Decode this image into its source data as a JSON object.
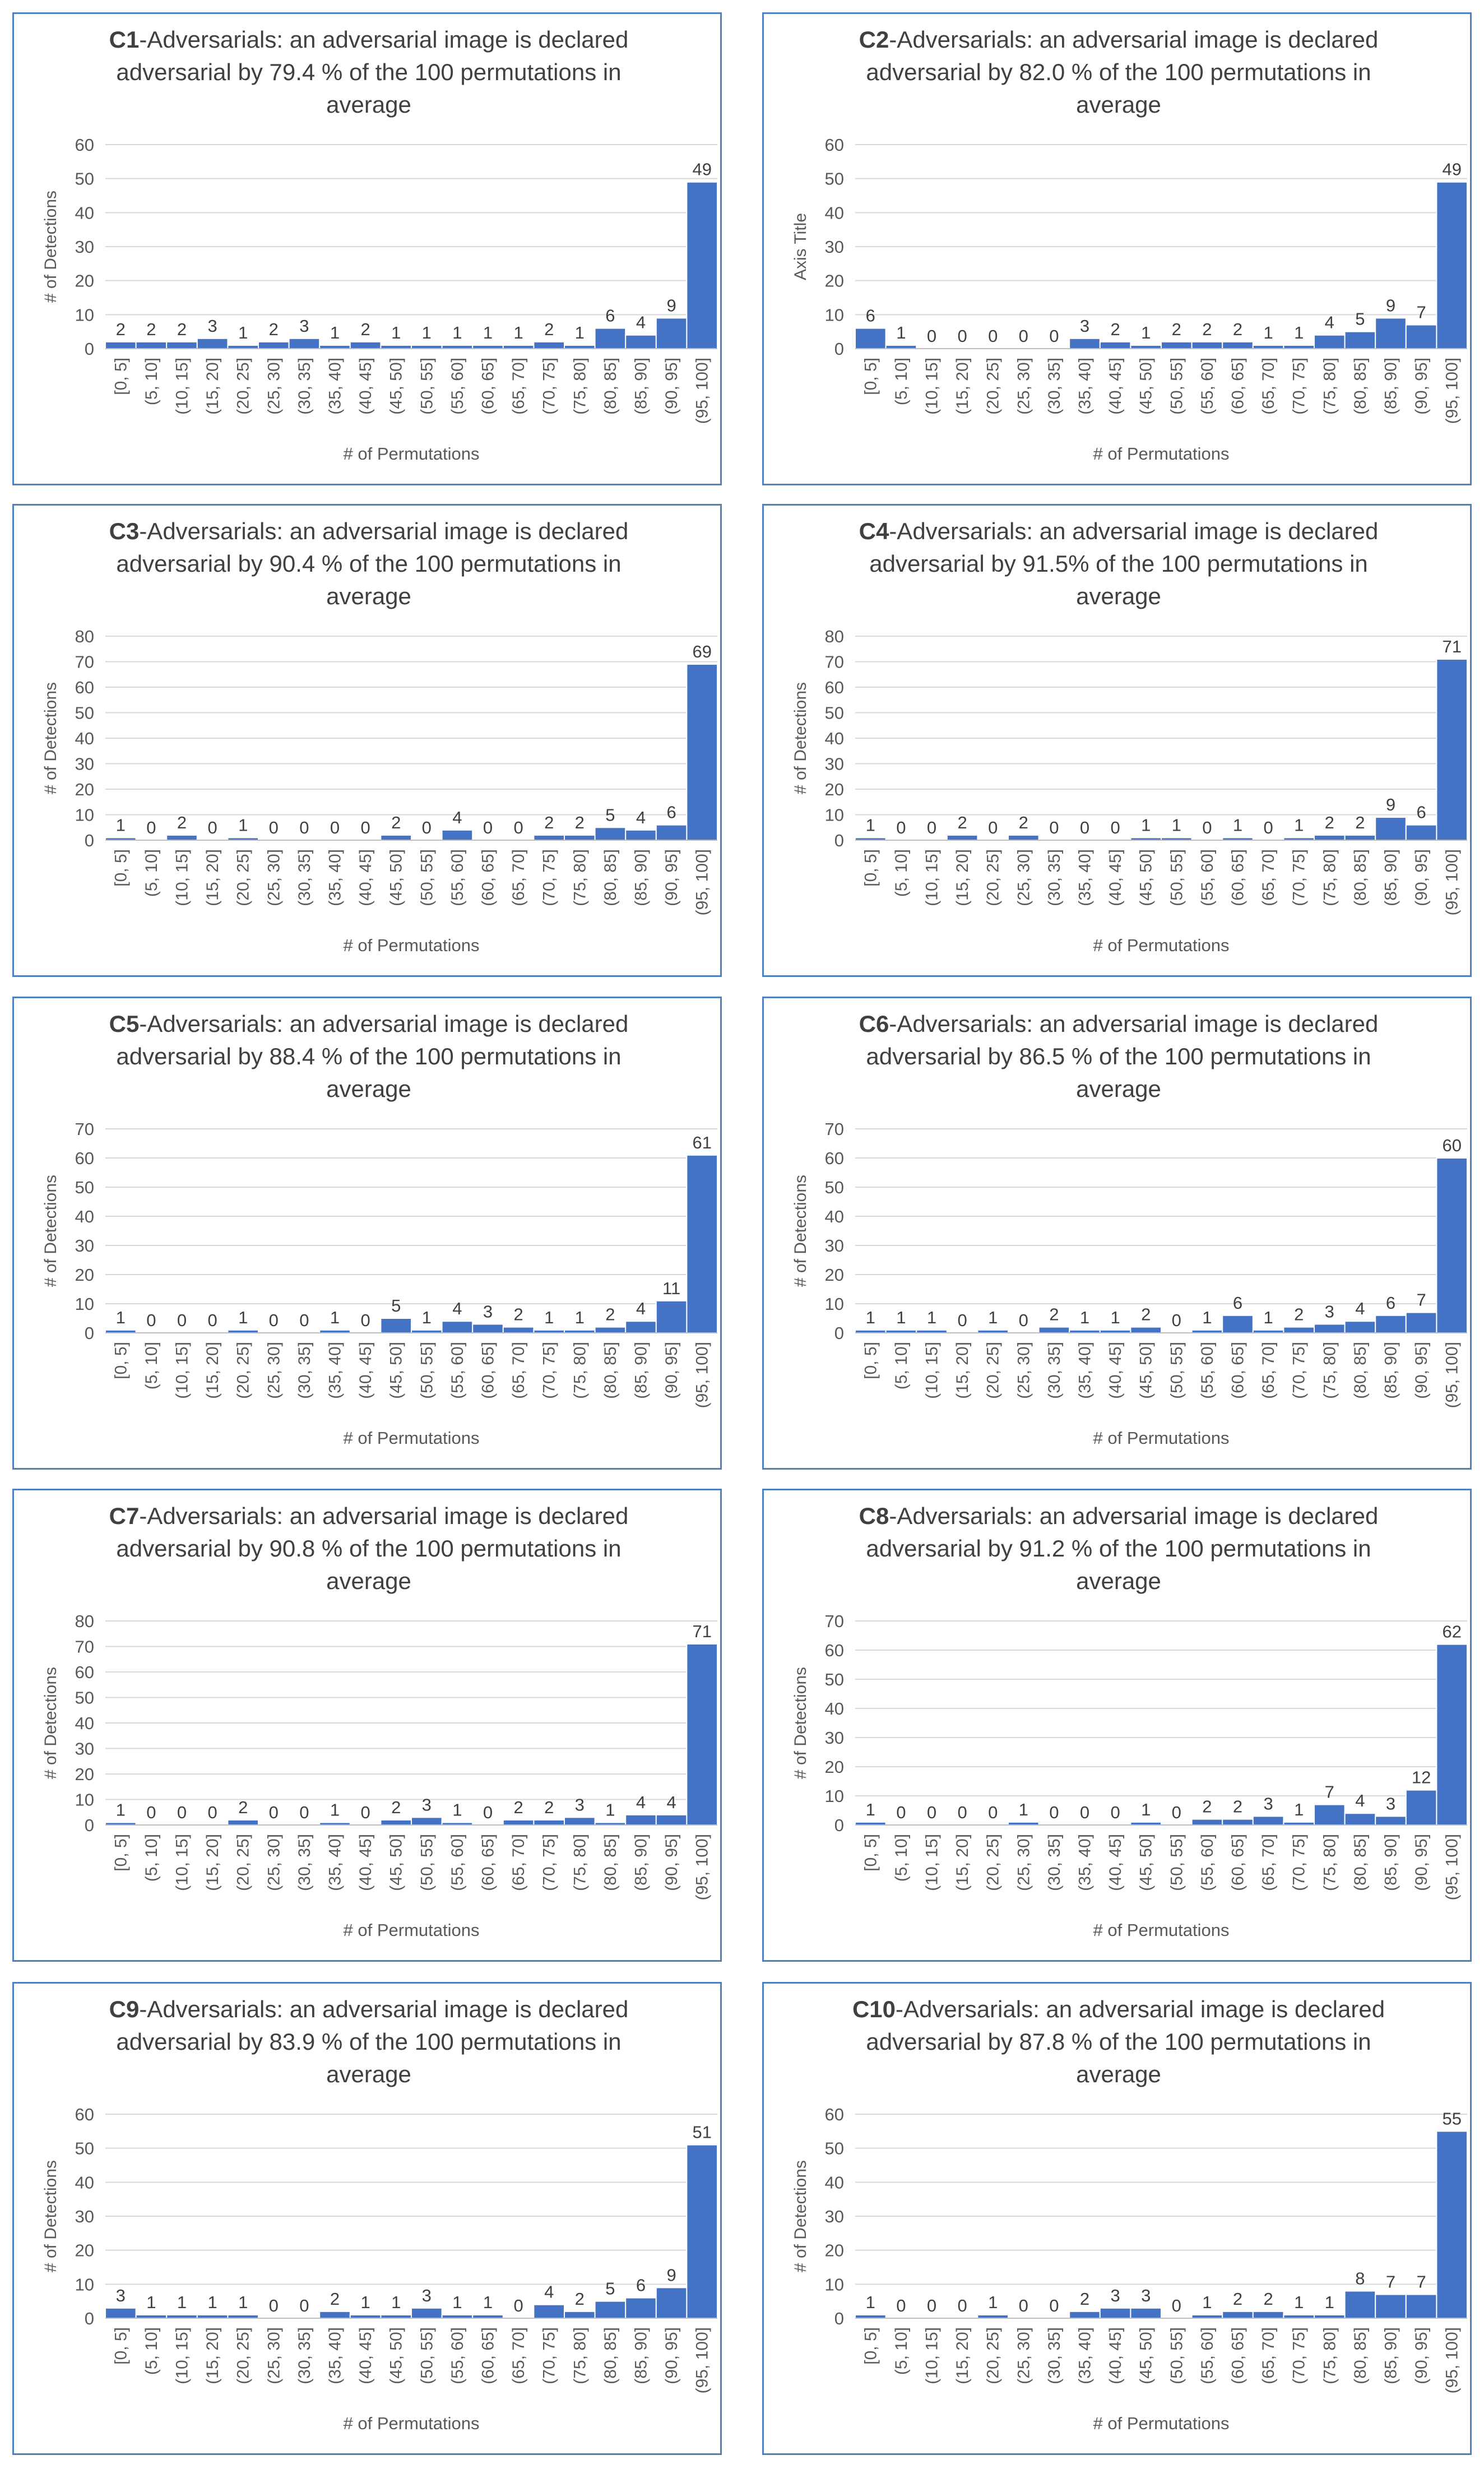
{
  "bar_color": "#4472c4",
  "panel_border_color": "#4f81bd",
  "grid_color": "#d9d9d9",
  "text_color": "#595959",
  "title_color": "#404040",
  "shared_categories": [
    "[0, 5]",
    "(5, 10]",
    "(10, 15]",
    "(15, 20]",
    "(20, 25]",
    "(25, 30]",
    "(30, 35]",
    "(35, 40]",
    "(40, 45]",
    "(45, 50]",
    "(50, 55]",
    "(55, 60]",
    "(60, 65]",
    "(65, 70]",
    "(70, 75]",
    "(75, 80]",
    "(80, 85]",
    "(85, 90]",
    "(90, 95]",
    "(95, 100]"
  ],
  "chart_data": [
    {
      "type": "bar",
      "id": "C1",
      "title_bold": "C1",
      "title_rest": "-Adversarials: an adversarial image is declared",
      "title_line2": "adversarial by 79.4 % of the 100 permutations in",
      "title_line3": "average",
      "xlabel": "# of Permutations",
      "ylabel": "# of Detections",
      "ylim": [
        0,
        60
      ],
      "yticks": [
        0,
        10,
        20,
        30,
        40,
        50,
        60
      ],
      "values": [
        2,
        2,
        2,
        3,
        1,
        2,
        3,
        1,
        2,
        1,
        1,
        1,
        1,
        1,
        2,
        1,
        6,
        4,
        9,
        49
      ]
    },
    {
      "type": "bar",
      "id": "C2",
      "title_bold": "C2",
      "title_rest": "-Adversarials: an adversarial image is declared",
      "title_line2": "adversarial by 82.0 % of the 100 permutations in",
      "title_line3": "average",
      "xlabel": "# of Permutations",
      "ylabel": "Axis Title",
      "ylim": [
        0,
        60
      ],
      "yticks": [
        0,
        10,
        20,
        30,
        40,
        50,
        60
      ],
      "values": [
        6,
        1,
        0,
        0,
        0,
        0,
        0,
        3,
        2,
        1,
        2,
        2,
        2,
        1,
        1,
        4,
        5,
        9,
        7,
        49
      ]
    },
    {
      "type": "bar",
      "id": "C3",
      "title_bold": "C3",
      "title_rest": "-Adversarials: an adversarial image is declared",
      "title_line2": "adversarial by 90.4 % of the 100 permutations in",
      "title_line3": "average",
      "xlabel": "# of Permutations",
      "ylabel": "# of Detections",
      "ylim": [
        0,
        80
      ],
      "yticks": [
        0,
        10,
        20,
        30,
        40,
        50,
        60,
        70,
        80
      ],
      "values": [
        1,
        0,
        2,
        0,
        1,
        0,
        0,
        0,
        0,
        2,
        0,
        4,
        0,
        0,
        2,
        2,
        5,
        4,
        6,
        69
      ]
    },
    {
      "type": "bar",
      "id": "C4",
      "title_bold": "C4",
      "title_rest": "-Adversarials: an adversarial image is declared",
      "title_line2": "adversarial by 91.5% of the 100 permutations in",
      "title_line3": "average",
      "xlabel": "# of Permutations",
      "ylabel": "# of Detections",
      "ylim": [
        0,
        80
      ],
      "yticks": [
        0,
        10,
        20,
        30,
        40,
        50,
        60,
        70,
        80
      ],
      "values": [
        1,
        0,
        0,
        2,
        0,
        2,
        0,
        0,
        0,
        1,
        1,
        0,
        1,
        0,
        1,
        2,
        2,
        9,
        6,
        71
      ]
    },
    {
      "type": "bar",
      "id": "C5",
      "title_bold": "C5",
      "title_rest": "-Adversarials: an adversarial image is declared",
      "title_line2": "adversarial by 88.4 % of the 100 permutations in",
      "title_line3": "average",
      "xlabel": "# of Permutations",
      "ylabel": "# of Detections",
      "ylim": [
        0,
        70
      ],
      "yticks": [
        0,
        10,
        20,
        30,
        40,
        50,
        60,
        70
      ],
      "values": [
        1,
        0,
        0,
        0,
        1,
        0,
        0,
        1,
        0,
        5,
        1,
        4,
        3,
        2,
        1,
        1,
        2,
        4,
        11,
        61
      ]
    },
    {
      "type": "bar",
      "id": "C6",
      "title_bold": "C6",
      "title_rest": "-Adversarials: an adversarial image is declared",
      "title_line2": "adversarial by 86.5 % of the 100 permutations in",
      "title_line3": "average",
      "xlabel": "# of Permutations",
      "ylabel": "# of Detections",
      "ylim": [
        0,
        70
      ],
      "yticks": [
        0,
        10,
        20,
        30,
        40,
        50,
        60,
        70
      ],
      "values": [
        1,
        1,
        1,
        0,
        1,
        0,
        2,
        1,
        1,
        2,
        0,
        1,
        6,
        1,
        2,
        3,
        4,
        6,
        7,
        60
      ]
    },
    {
      "type": "bar",
      "id": "C7",
      "title_bold": "C7",
      "title_rest": "-Adversarials: an adversarial image is declared",
      "title_line2": "adversarial by 90.8 % of the 100 permutations in",
      "title_line3": "average",
      "xlabel": "# of Permutations",
      "ylabel": "# of Detections",
      "ylim": [
        0,
        80
      ],
      "yticks": [
        0,
        10,
        20,
        30,
        40,
        50,
        60,
        70,
        80
      ],
      "values": [
        1,
        0,
        0,
        0,
        2,
        0,
        0,
        1,
        0,
        2,
        3,
        1,
        0,
        2,
        2,
        3,
        1,
        4,
        4,
        71
      ]
    },
    {
      "type": "bar",
      "id": "C8",
      "title_bold": "C8",
      "title_rest": "-Adversarials: an adversarial image is declared",
      "title_line2": "adversarial by 91.2 % of the 100 permutations in",
      "title_line3": "average",
      "xlabel": "# of Permutations",
      "ylabel": "# of Detections",
      "ylim": [
        0,
        70
      ],
      "yticks": [
        0,
        10,
        20,
        30,
        40,
        50,
        60,
        70
      ],
      "values": [
        1,
        0,
        0,
        0,
        0,
        1,
        0,
        0,
        0,
        1,
        0,
        2,
        2,
        3,
        1,
        7,
        4,
        3,
        12,
        62
      ]
    },
    {
      "type": "bar",
      "id": "C9",
      "title_bold": "C9",
      "title_rest": "-Adversarials: an adversarial image is declared",
      "title_line2": "adversarial by 83.9 % of the 100 permutations in",
      "title_line3": "average",
      "xlabel": "# of Permutations",
      "ylabel": "# of Detections",
      "ylim": [
        0,
        60
      ],
      "yticks": [
        0,
        10,
        20,
        30,
        40,
        50,
        60
      ],
      "values": [
        3,
        1,
        1,
        1,
        1,
        0,
        0,
        2,
        1,
        1,
        3,
        1,
        1,
        0,
        4,
        2,
        5,
        6,
        9,
        51
      ]
    },
    {
      "type": "bar",
      "id": "C10",
      "title_bold": "C10",
      "title_rest": "-Adversarials: an adversarial image is declared",
      "title_line2": "adversarial by 87.8 % of the 100 permutations in",
      "title_line3": "average",
      "xlabel": "# of Permutations",
      "ylabel": "# of Detections",
      "ylim": [
        0,
        60
      ],
      "yticks": [
        0,
        10,
        20,
        30,
        40,
        50,
        60
      ],
      "values": [
        1,
        0,
        0,
        0,
        1,
        0,
        0,
        2,
        3,
        3,
        0,
        1,
        2,
        2,
        1,
        1,
        8,
        7,
        7,
        55
      ]
    }
  ]
}
